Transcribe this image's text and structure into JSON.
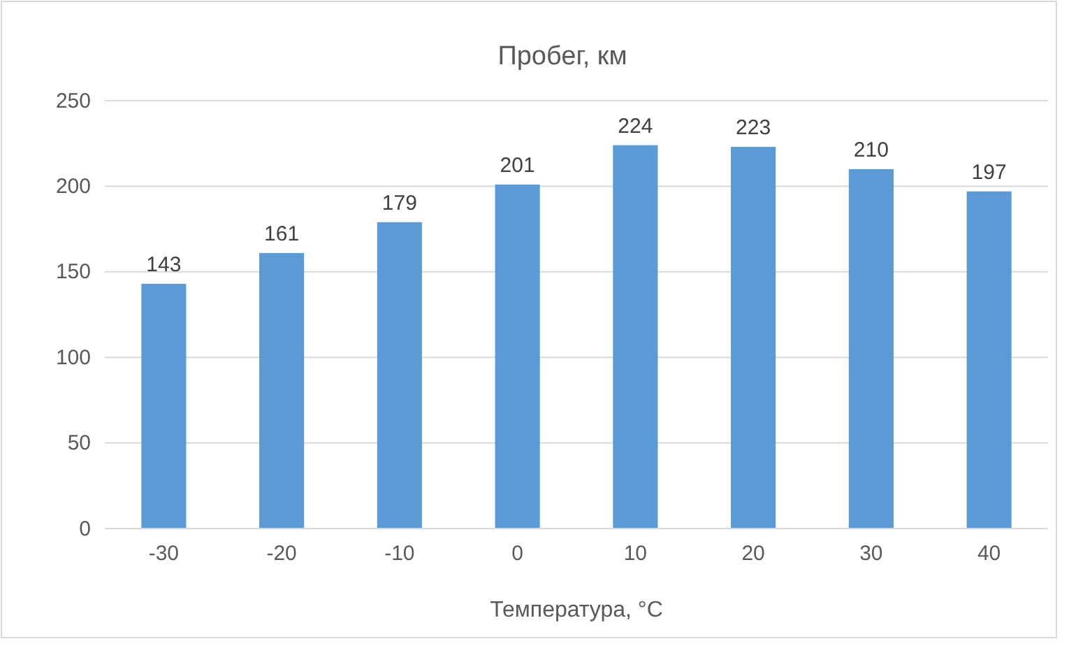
{
  "chart_data": {
    "type": "bar",
    "title": "Пробег, км",
    "xlabel": "Температура, °C",
    "categories": [
      "-30",
      "-20",
      "-10",
      "0",
      "10",
      "20",
      "30",
      "40"
    ],
    "values": [
      143,
      161,
      179,
      201,
      224,
      223,
      210,
      197
    ],
    "color": "#5b9bd5",
    "ylim": [
      0,
      250
    ],
    "yticks": [
      0,
      50,
      100,
      150,
      200,
      250
    ],
    "grid": "y",
    "data_labels": true
  }
}
